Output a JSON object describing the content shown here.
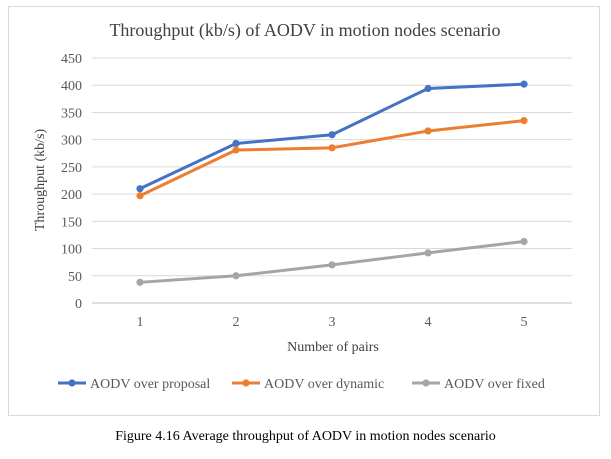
{
  "caption": "Figure 4.16 Average throughput of AODV in motion nodes scenario",
  "chart_data": {
    "type": "line",
    "title": "Throughput (kb/s) of AODV in motion nodes scenario",
    "xlabel": "Number of pairs",
    "ylabel": "Throughput (kb/s)",
    "categories": [
      "1",
      "2",
      "3",
      "4",
      "5"
    ],
    "ylim": [
      0,
      450
    ],
    "yticks": [
      0,
      50,
      100,
      150,
      200,
      250,
      300,
      350,
      400,
      450
    ],
    "grid": true,
    "legend_position": "bottom",
    "series": [
      {
        "name": "AODV over proposal",
        "color": "#4472c4",
        "values": [
          210,
          293,
          309,
          394,
          402
        ]
      },
      {
        "name": "AODV over dynamic",
        "color": "#ed7d31",
        "values": [
          197,
          281,
          285,
          316,
          335
        ]
      },
      {
        "name": "AODV over fixed",
        "color": "#a5a5a5",
        "values": [
          38,
          50,
          70,
          92,
          113
        ]
      }
    ]
  }
}
